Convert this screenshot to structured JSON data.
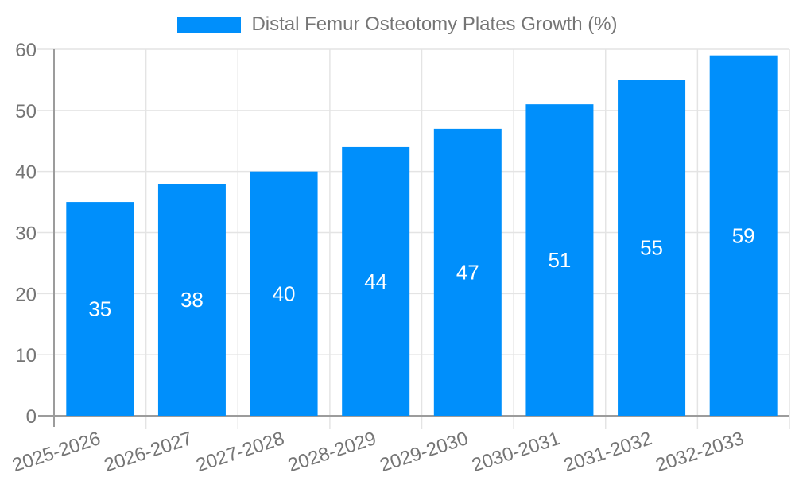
{
  "legend": {
    "label": "Distal Femur Osteotomy Plates Growth (%)"
  },
  "colors": {
    "bar": "#008ffb",
    "grid": "#e4e4e4",
    "axis": "#9c9c9c",
    "tick_text": "#757575",
    "value_text": "#ffffff",
    "background": "#ffffff"
  },
  "chart_data": {
    "type": "bar",
    "title": "Distal Femur Osteotomy Plates Growth (%)",
    "categories": [
      "2025-2026",
      "2026-2027",
      "2027-2028",
      "2028-2029",
      "2029-2030",
      "2030-2031",
      "2031-2032",
      "2032-2033"
    ],
    "values": [
      35,
      38,
      40,
      44,
      47,
      51,
      55,
      59
    ],
    "xlabel": "",
    "ylabel": "",
    "ylim": [
      0,
      60
    ],
    "y_ticks": [
      0,
      10,
      20,
      30,
      40,
      50,
      60
    ],
    "grid": true,
    "legend_position": "top-center",
    "value_label_position": "inside-center",
    "x_tick_rotation_deg": -18
  }
}
